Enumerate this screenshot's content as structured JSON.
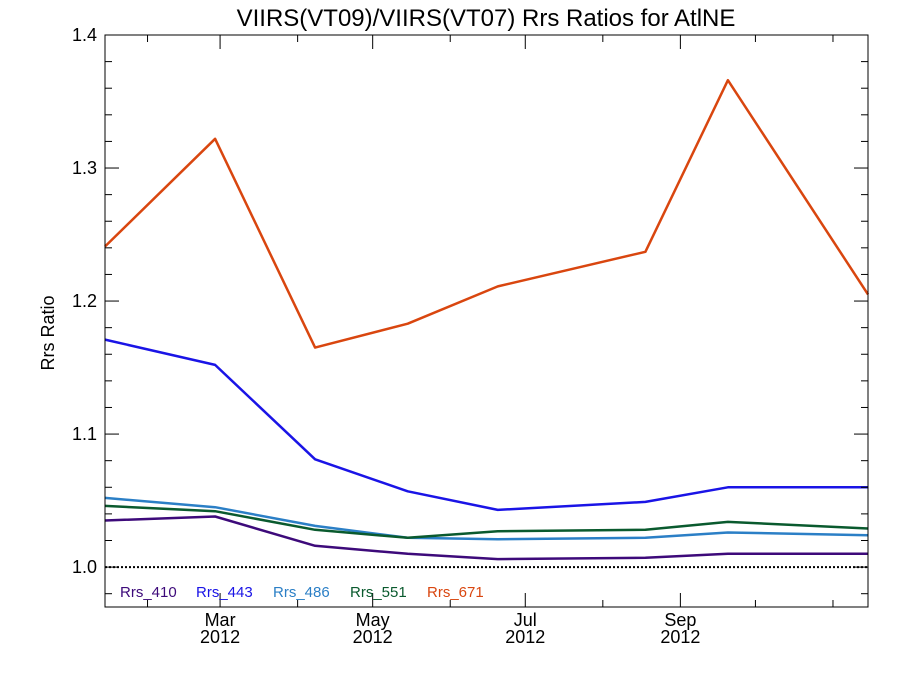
{
  "chart_data": {
    "type": "line",
    "title": "VIIRS(VT09)/VIIRS(VT07)  Rrs Ratios for AtlNE",
    "xlabel": "",
    "ylabel": "Rrs Ratio",
    "xlim": [
      "2012-01-15",
      "2012-11-15"
    ],
    "ylim": [
      0.97,
      1.4
    ],
    "x": [
      "2012-01-15",
      "2012-02-28",
      "2012-04-08",
      "2012-05-15",
      "2012-06-20",
      "2012-08-18",
      "2012-09-20",
      "2012-11-15"
    ],
    "x_ticks": [
      {
        "date": "2012-03-01",
        "month": "Mar",
        "year": "2012"
      },
      {
        "date": "2012-05-01",
        "month": "May",
        "year": "2012"
      },
      {
        "date": "2012-07-01",
        "month": "Jul",
        "year": "2012"
      },
      {
        "date": "2012-09-01",
        "month": "Sep",
        "year": "2012"
      }
    ],
    "y_ticks": [
      "1.0",
      "1.1",
      "1.2",
      "1.3",
      "1.4"
    ],
    "y_tick_values": [
      1.0,
      1.1,
      1.2,
      1.3,
      1.4
    ],
    "reference_line": 1.0,
    "legend_placement": "bottom-left",
    "series": [
      {
        "name": "Rrs_410",
        "color": "#3d0a7a",
        "values": [
          1.035,
          1.038,
          1.016,
          1.01,
          1.006,
          1.007,
          1.01,
          1.01
        ]
      },
      {
        "name": "Rrs_443",
        "color": "#1a14e6",
        "values": [
          1.171,
          1.152,
          1.081,
          1.057,
          1.043,
          1.049,
          1.06,
          1.06
        ]
      },
      {
        "name": "Rrs_486",
        "color": "#2b7fc6",
        "values": [
          1.052,
          1.045,
          1.031,
          1.022,
          1.021,
          1.022,
          1.026,
          1.024
        ]
      },
      {
        "name": "Rrs_551",
        "color": "#0a5a2e",
        "values": [
          1.046,
          1.042,
          1.028,
          1.022,
          1.027,
          1.028,
          1.034,
          1.029
        ]
      },
      {
        "name": "Rrs_671",
        "color": "#d9460f",
        "values": [
          1.241,
          1.322,
          1.165,
          1.183,
          1.211,
          1.237,
          1.366,
          1.205
        ]
      }
    ]
  }
}
